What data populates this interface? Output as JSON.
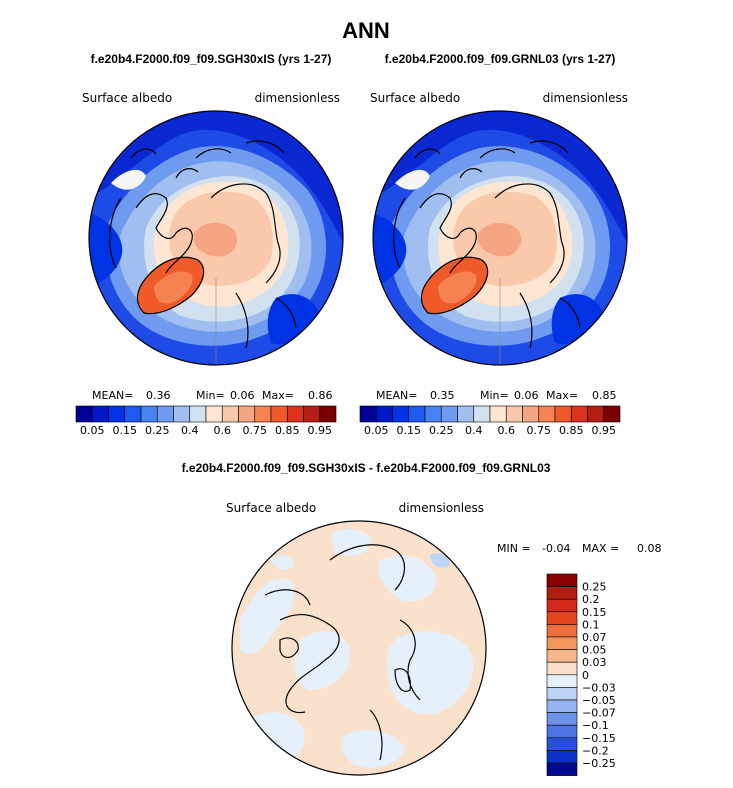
{
  "chart_data": {
    "type": "heatmap",
    "title": "ANN",
    "panels": [
      {
        "id": "left",
        "subtitle": "f.e20b4.F2000.f09_f09.SGH30xIS (yrs 1-27)",
        "variable": "Surface albedo",
        "units": "dimensionless",
        "stats": {
          "mean_label": "MEAN=",
          "mean": "0.36",
          "min_label": "Min=",
          "min": "0.06",
          "max_label": "Max=",
          "max": "0.86"
        }
      },
      {
        "id": "right",
        "subtitle": "f.e20b4.F2000.f09_f09.GRNL03 (yrs 1-27)",
        "variable": "Surface albedo",
        "units": "dimensionless",
        "stats": {
          "mean_label": "MEAN=",
          "mean": "0.35",
          "min_label": "Min=",
          "min": "0.06",
          "max_label": "Max=",
          "max": "0.85"
        }
      }
    ],
    "colorbar": {
      "colors": [
        "#000096",
        "#0019C8",
        "#0033E6",
        "#1E5AF0",
        "#4682F0",
        "#6E9BF0",
        "#A0BEF0",
        "#D2E1F0",
        "#FFE6D2",
        "#FAC8AA",
        "#F5A582",
        "#F58250",
        "#F05A28",
        "#DC321E",
        "#B41E14",
        "#780000"
      ],
      "labels": [
        "0.05",
        "0.15",
        "0.25",
        "0.4",
        "0.6",
        "0.75",
        "0.85",
        "0.95"
      ]
    },
    "difference": {
      "title": "f.e20b4.F2000.f09_f09.SGH30xIS - f.e20b4.F2000.f09_f09.GRNL03",
      "variable": "Surface albedo",
      "units": "dimensionless",
      "min_label": "MIN =",
      "min": "-0.04",
      "max_label": "MAX =",
      "max": "0.08",
      "colorbar_colors": [
        "#8B0000",
        "#B01E12",
        "#D2281A",
        "#E6461E",
        "#F06E3C",
        "#F5965F",
        "#F5B98C",
        "#FAE1CC",
        "#E6F0FA",
        "#BCD4F5",
        "#96B4F0",
        "#6E91EB",
        "#4B73E6",
        "#2850DC",
        "#0A32C8",
        "#000A8C"
      ],
      "colorbar_labels": [
        "0.25",
        "0.2",
        "0.15",
        "0.1",
        "0.07",
        "0.05",
        "0.03",
        "0",
        "−0.03",
        "−0.05",
        "−0.07",
        "−0.1",
        "−0.15",
        "−0.2",
        "−0.25"
      ]
    }
  }
}
